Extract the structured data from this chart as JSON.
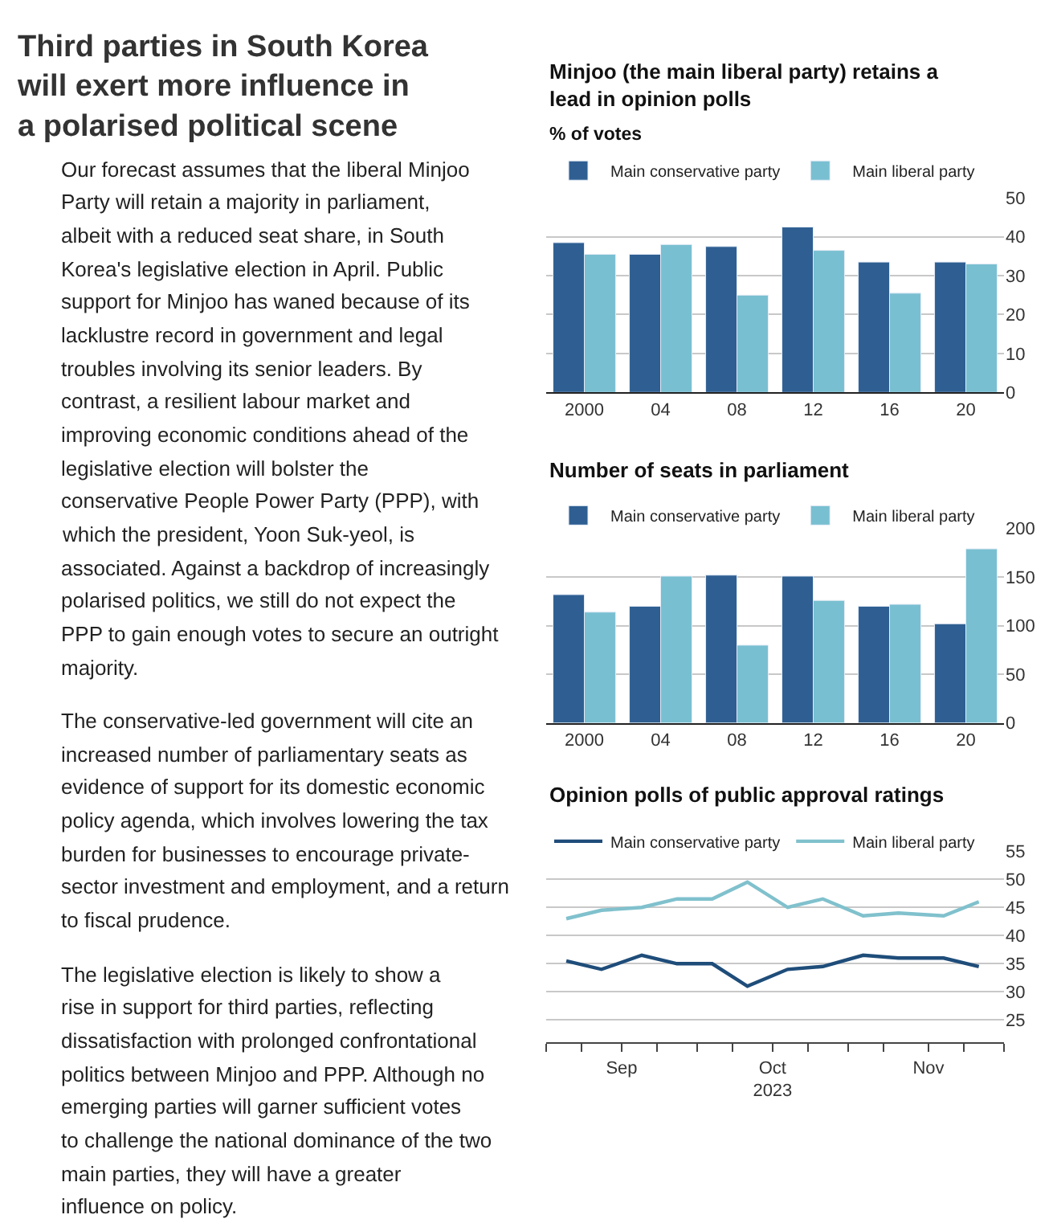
{
  "chart_data": [
    {
      "type": "other",
      "title": "Third parties in South Korea will exert more influence in a polarised political scene",
      "annotations": [
        "Our forecast assumes that the liberal Minjoo Party will retain a majority in parliament, albeit with a reduced seat share, in South Korea's legislative election in April. Public support for Minjoo has waned because of its lacklustre record in government and legal troubles involving its senior leaders. By contrast, a resilient labour market and improving economic conditions ahead of the legislative election will bolster the conservative People Power Party (PPP), with which the president, Yoon Suk-yeol, is associated. Against a backdrop of increasingly polarised politics, we still do not expect the PPP to gain enough votes to secure an outright majority.",
        "The conservative-led government will cite an increased number of parliamentary seats as evidence of support for its domestic economic policy agenda, which involves lowering the tax burden for businesses to encourage private-sector investment and employment, and a return to fiscal prudence.",
        "The legislative election is likely to show a rise in support for third parties, reflecting dissatisfaction with prolonged confrontational politics between Minjoo and PPP. Although no emerging parties will garner sufficient votes to challenge the national dominance of the two main parties, they will have a greater influence on policy."
      ]
    },
    {
      "type": "bar",
      "title": "Minjoo (the main liberal party) retains a lead in opinion polls",
      "subtitle": "% of votes",
      "categories": [
        "2000",
        "04",
        "08",
        "12",
        "16",
        "20"
      ],
      "series": [
        {
          "name": "Main conservative party",
          "color": "#2f5f92",
          "values": [
            38.5,
            35.5,
            37.5,
            42.5,
            33.5,
            33.5
          ]
        },
        {
          "name": "Main liberal party",
          "color": "#78bfd1",
          "values": [
            35.5,
            38,
            25,
            36.5,
            25.5,
            33
          ]
        }
      ],
      "ylim": [
        0,
        50
      ],
      "yticks": [
        0,
        10,
        20,
        30,
        40,
        50
      ],
      "grid": "y",
      "legend": "top left"
    },
    {
      "type": "bar",
      "title": "Number of seats in parliament",
      "categories": [
        "2000",
        "04",
        "08",
        "12",
        "16",
        "20"
      ],
      "series": [
        {
          "name": "Main conservative party",
          "color": "#2f5f92",
          "values": [
            132,
            120,
            152,
            151,
            120,
            102
          ]
        },
        {
          "name": "Main liberal party",
          "color": "#78bfd1",
          "values": [
            114,
            151,
            80,
            126,
            122,
            179
          ]
        }
      ],
      "ylim": [
        0,
        200
      ],
      "yticks": [
        0,
        50,
        100,
        150,
        200
      ],
      "grid": "y",
      "legend": "top left"
    },
    {
      "type": "line",
      "title": "Opinion polls of public approval ratings",
      "x": [
        "2023-08-21",
        "2023-08-28",
        "2023-09-05",
        "2023-09-12",
        "2023-09-19",
        "2023-09-26",
        "2023-10-04",
        "2023-10-11",
        "2023-10-19",
        "2023-10-26",
        "2023-11-04",
        "2023-11-11"
      ],
      "series": [
        {
          "name": "Main conservative party",
          "color": "#1f4d7a",
          "values": [
            35.5,
            34,
            36.5,
            35,
            35,
            31,
            34,
            34.5,
            36.5,
            36,
            36,
            34.5
          ]
        },
        {
          "name": "Main liberal party",
          "color": "#80c1cd",
          "values": [
            43,
            44.5,
            45,
            46.5,
            46.5,
            49.5,
            45,
            46.5,
            43.5,
            44,
            43.5,
            46
          ]
        }
      ],
      "xlim": [
        "2023-08-17",
        "2023-11-16"
      ],
      "xticks": [
        {
          "value": "2023-08-17",
          "label": null
        },
        {
          "value": "2023-08-24",
          "label": null
        },
        {
          "value": "2023-09-01",
          "label": "Sep"
        },
        {
          "value": "2023-09-08",
          "label": null
        },
        {
          "value": "2023-09-16",
          "label": null
        },
        {
          "value": "2023-09-23",
          "label": null
        },
        {
          "value": "2023-10-01",
          "label": "Oct\n2023"
        },
        {
          "value": "2023-10-08",
          "label": null
        },
        {
          "value": "2023-10-16",
          "label": null
        },
        {
          "value": "2023-10-23",
          "label": null
        },
        {
          "value": "2023-11-01",
          "label": "Nov"
        },
        {
          "value": "2023-11-08",
          "label": null
        },
        {
          "value": "2023-11-16",
          "label": null
        }
      ],
      "ylim": [
        21,
        55
      ],
      "yticks": [
        25,
        30,
        35,
        40,
        45,
        50,
        55
      ],
      "grid": "y",
      "legend": "top left",
      "line_style": "solid"
    }
  ]
}
